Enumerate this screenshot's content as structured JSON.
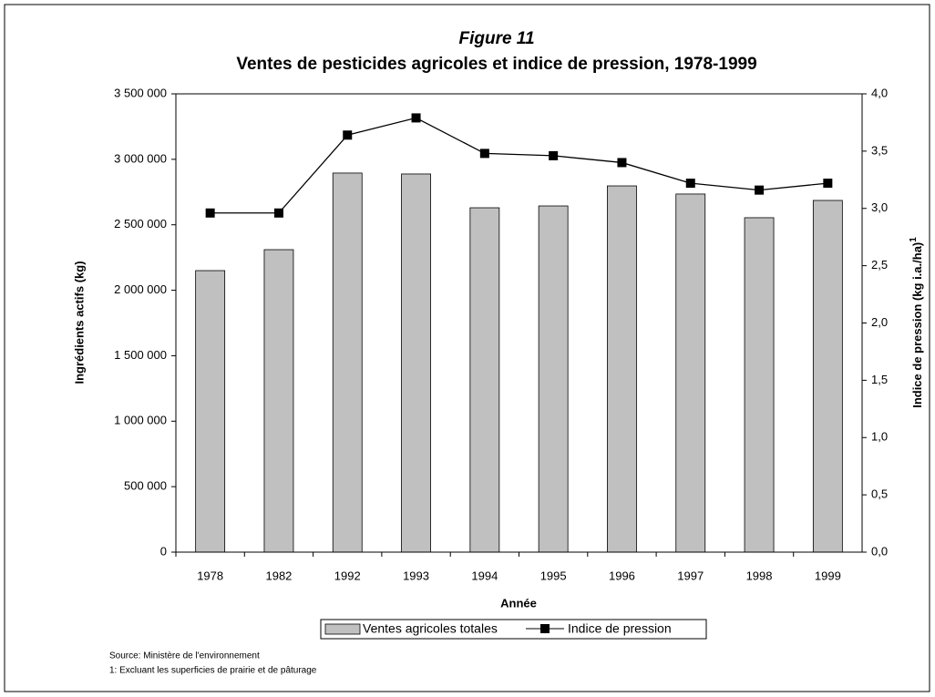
{
  "chart_data": {
    "type": "bar",
    "title": "Figure 11",
    "subtitle": "Ventes de pesticides agricoles et indice de pression, 1978-1999",
    "x_label": "Année",
    "y_label": "Ingrédients actifs (kg)",
    "y2_label": "Indice de pression (kg i.a./ha)",
    "y2_label_note": "1",
    "categories": [
      "1978",
      "1982",
      "1992",
      "1993",
      "1994",
      "1995",
      "1996",
      "1997",
      "1998",
      "1999"
    ],
    "series": [
      {
        "name": "Ventes agricoles totales",
        "type": "bar",
        "color": "#c0c0c0",
        "values": [
          2150000,
          2310000,
          2895000,
          2888000,
          2630000,
          2644000,
          2797000,
          2735000,
          2554000,
          2686000
        ]
      },
      {
        "name": "Indice de pression",
        "type": "line",
        "axis": "y2",
        "color": "#000000",
        "values": [
          2.96,
          2.96,
          3.64,
          3.79,
          3.48,
          3.46,
          3.4,
          3.22,
          3.16,
          3.22
        ]
      }
    ],
    "ylim": [
      0,
      3500000
    ],
    "yticks": [
      0,
      {
        "value": 500000,
        "label": "500 000"
      },
      {
        "value": 1000000,
        "label": "1 000 000"
      },
      {
        "value": 1500000,
        "label": "1 500 000"
      },
      {
        "value": 2000000,
        "label": "2 000 000"
      },
      {
        "value": 2500000,
        "label": "2 500 000"
      },
      {
        "value": 3000000,
        "label": "3 000 000"
      },
      {
        "value": 3500000,
        "label": "3 500 000"
      }
    ],
    "y2lim": [
      0,
      4
    ],
    "y2ticks": [
      {
        "value": 0,
        "label": "0,0"
      },
      {
        "value": 0.5,
        "label": "0,5"
      },
      {
        "value": 1,
        "label": "1,0"
      },
      {
        "value": 1.5,
        "label": "1,5"
      },
      {
        "value": 2,
        "label": "2,0"
      },
      {
        "value": 2.5,
        "label": "2,5"
      },
      {
        "value": 3,
        "label": "3,0"
      },
      {
        "value": 3.5,
        "label": "3,5"
      },
      {
        "value": 4,
        "label": "4,0"
      }
    ],
    "grid": false,
    "legend": "bottom",
    "notes": [
      "Source: Ministère de l'environnement",
      "1: Excluant les superficies de prairie et de pâturage"
    ]
  }
}
